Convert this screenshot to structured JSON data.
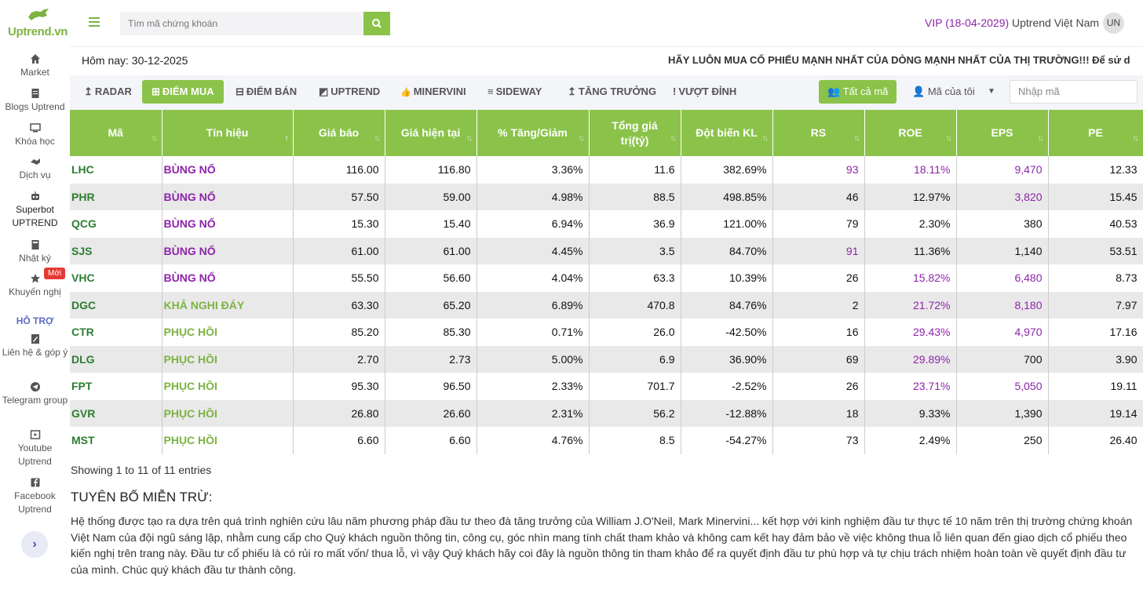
{
  "app": {
    "logo_text": "Uptrend.vn"
  },
  "sidebar": {
    "items": [
      {
        "label": "Market",
        "icon": "home-icon"
      },
      {
        "label": "Blogs Uptrend",
        "icon": "document-icon"
      },
      {
        "label": "Khóa học",
        "icon": "monitor-icon"
      },
      {
        "label": "Dịch vụ",
        "icon": "handshake-icon"
      },
      {
        "label": "Superbot UPTREND",
        "icon": "robot-icon"
      },
      {
        "label": "Nhật ký",
        "icon": "book-icon"
      },
      {
        "label": "Khuyến nghị",
        "icon": "star-icon"
      }
    ],
    "new_badge": "Mới",
    "support_heading": "HỖ TRỢ",
    "support_items": [
      {
        "label": "Liên hệ & góp ý",
        "icon": "edit-icon"
      },
      {
        "label": "Telegram group",
        "icon": "telegram-icon"
      },
      {
        "label": "Youtube Uptrend",
        "icon": "youtube-icon"
      },
      {
        "label": "Facebook Uptrend",
        "icon": "facebook-icon"
      }
    ],
    "expand_glyph": "›"
  },
  "header": {
    "search_placeholder": "Tìm mã chứng khoán",
    "vip": "VIP (18-04-2029)",
    "user_name": "Uptrend Việt Nam",
    "avatar_initials": "UN"
  },
  "info": {
    "today": "Hôm nay: 30-12-2025",
    "ticker": "HÃY LUÔN MUA CỔ PHIẾU MẠNH NHẤT CỦA DÒNG MẠNH NHẤT CỦA THỊ TRƯỜNG!!!   Để sử d"
  },
  "toolbar": {
    "tabs": [
      {
        "label": "RADAR",
        "glyph": "↥"
      },
      {
        "label": "ĐIỂM MUA",
        "glyph": "⊞"
      },
      {
        "label": "ĐIỂM BÁN",
        "glyph": "⊟"
      },
      {
        "label": "UPTREND",
        "glyph": "◩"
      },
      {
        "label": "MINERVINI",
        "glyph": "👍"
      },
      {
        "label": "SIDEWAY",
        "glyph": "≡"
      },
      {
        "label": "TĂNG TRƯỞNG",
        "glyph": "↥"
      },
      {
        "label": "VƯỢT ĐỈNH",
        "glyph": "!"
      }
    ],
    "active_tab": "ĐIỂM MUA",
    "all_codes": "Tất cả mã",
    "my_codes": "Mã của tôi",
    "code_input_placeholder": "Nhập mã"
  },
  "table": {
    "columns": [
      "Mã",
      "Tín hiệu",
      "Giá báo",
      "Giá hiện tại",
      "% Tăng/Giảm",
      "Tổng giá trị(tỷ)",
      "Đột biến KL",
      "RS",
      "ROE",
      "EPS",
      "PE"
    ],
    "rows": [
      [
        "LHC",
        "BÙNG NỔ",
        "116.00",
        "116.80",
        "3.36%",
        "11.6",
        "382.69%",
        "93",
        "18.11%",
        "9,470",
        "12.33"
      ],
      [
        "PHR",
        "BÙNG NỔ",
        "57.50",
        "59.00",
        "4.98%",
        "88.5",
        "498.85%",
        "46",
        "12.97%",
        "3,820",
        "15.45"
      ],
      [
        "QCG",
        "BÙNG NỔ",
        "15.30",
        "15.40",
        "6.94%",
        "36.9",
        "121.00%",
        "79",
        "2.30%",
        "380",
        "40.53"
      ],
      [
        "SJS",
        "BÙNG NỔ",
        "61.00",
        "61.00",
        "4.45%",
        "3.5",
        "84.70%",
        "91",
        "11.36%",
        "1,140",
        "53.51"
      ],
      [
        "VHC",
        "BÙNG NỔ",
        "55.50",
        "56.60",
        "4.04%",
        "63.3",
        "10.39%",
        "26",
        "15.82%",
        "6,480",
        "8.73"
      ],
      [
        "DGC",
        "KHẢ NGHI ĐÁY",
        "63.30",
        "65.20",
        "6.89%",
        "470.8",
        "84.76%",
        "2",
        "21.72%",
        "8,180",
        "7.97"
      ],
      [
        "CTR",
        "PHỤC HỒI",
        "85.20",
        "85.30",
        "0.71%",
        "26.0",
        "-42.50%",
        "16",
        "29.43%",
        "4,970",
        "17.16"
      ],
      [
        "DLG",
        "PHỤC HỒI",
        "2.70",
        "2.73",
        "5.00%",
        "6.9",
        "36.90%",
        "69",
        "29.89%",
        "700",
        "3.90"
      ],
      [
        "FPT",
        "PHỤC HỒI",
        "95.30",
        "96.50",
        "2.33%",
        "701.7",
        "-2.52%",
        "26",
        "23.71%",
        "5,050",
        "19.11"
      ],
      [
        "GVR",
        "PHỤC HỒI",
        "26.80",
        "26.60",
        "2.31%",
        "56.2",
        "-12.88%",
        "18",
        "9.33%",
        "1,390",
        "19.14"
      ],
      [
        "MST",
        "PHỤC HỒI",
        "6.60",
        "6.60",
        "4.76%",
        "8.5",
        "-54.27%",
        "73",
        "2.49%",
        "250",
        "26.40"
      ]
    ],
    "highlights": {
      "rs_purple_rows": [
        0,
        3
      ],
      "roe_purple_rows": [
        0,
        4,
        5,
        6,
        7,
        8
      ],
      "eps_purple_rows": [
        0,
        1,
        4,
        5,
        6,
        8
      ]
    },
    "entries_text": "Showing 1 to 11 of 11 entries"
  },
  "disclaimer": {
    "title": "TUYÊN BỐ MIỄN TRỪ:",
    "body": "Hệ thống được tạo ra dựa trên quá trình nghiên cứu lâu năm phương pháp đầu tư theo đà tăng trưởng của William J.O'Neil, Mark Minervini... kết hợp với kinh nghiệm đầu tư thực tế 10 năm trên thị trường chứng khoán Việt Nam của đội ngũ sáng lập, nhằm cung cấp cho Quý khách nguồn thông tin, công cụ, góc nhìn mang tính chất tham khảo và không cam kết hay đảm bảo về việc không thua lỗ liên quan đến giao dịch cổ phiếu theo kiến nghị trên trang này. Đầu tư cổ phiếu là có rủi ro mất vốn/ thua lỗ, vì vậy Quý khách hãy coi đây là nguồn thông tin tham khảo để ra quyết định đầu tư phù hợp và tự chịu trách nhiệm hoàn toàn về quyết định đầu tư của mình. Chúc quý khách đầu tư thành công."
  },
  "colors": {
    "accent": "#8bc34a",
    "purple": "#8e24aa",
    "code_green": "#2e7d32"
  }
}
